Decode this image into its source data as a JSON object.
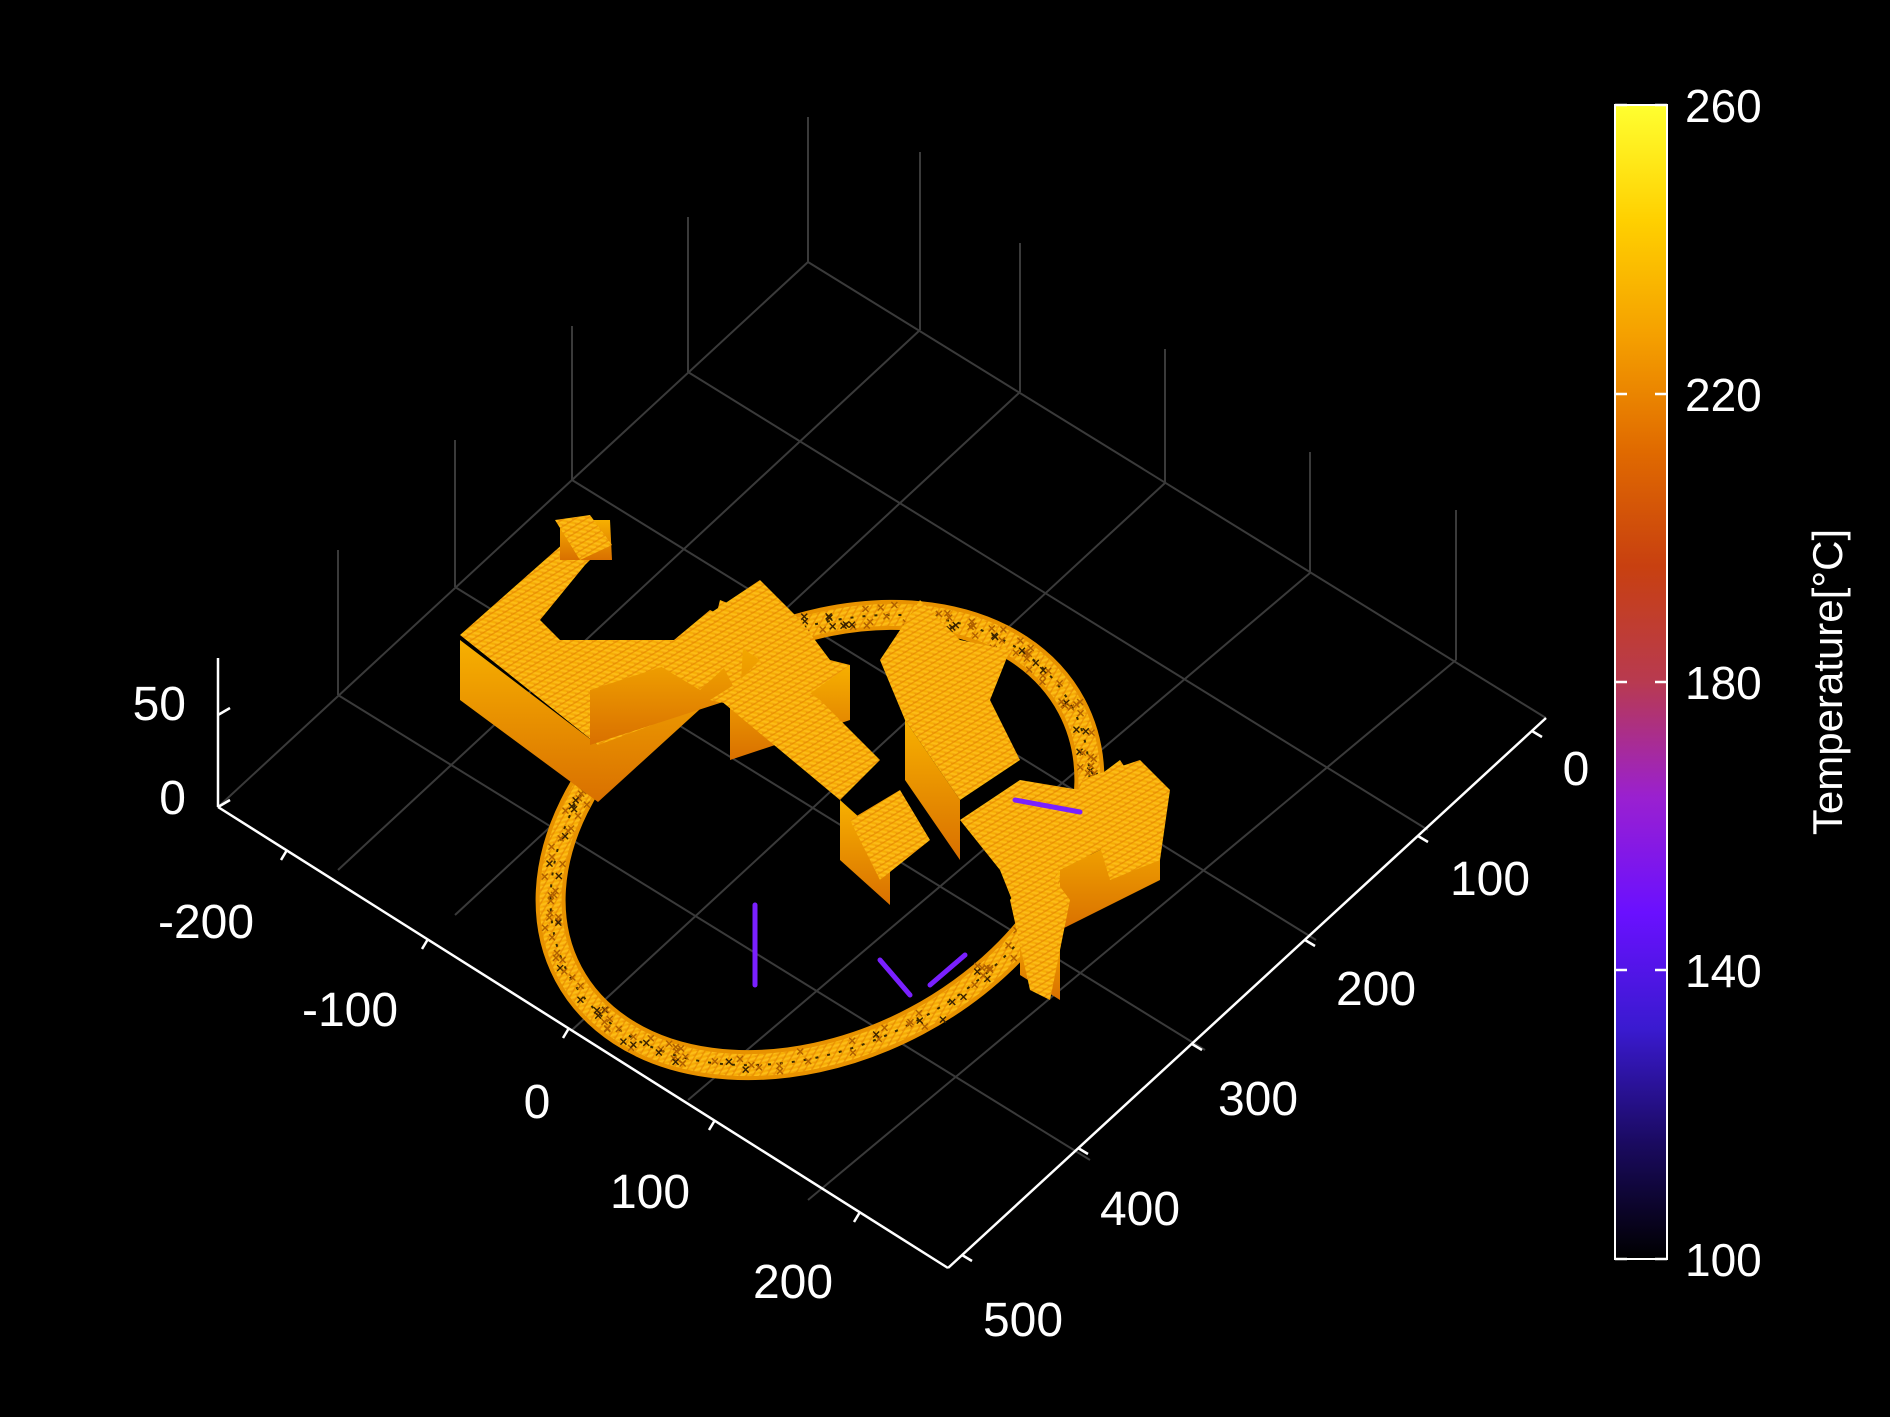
{
  "chart_data": {
    "type": "scatter3d",
    "title": "",
    "xlabel": "",
    "ylabel": "",
    "zlabel": "",
    "background": "#000000",
    "grid": true,
    "view": "isometric",
    "axes": {
      "x": {
        "ticks": [
          "-200",
          "-100",
          "0",
          "100",
          "200"
        ],
        "range": [
          -250,
          250
        ]
      },
      "y": {
        "ticks": [
          "0",
          "100",
          "200",
          "300",
          "400",
          "500"
        ],
        "range": [
          -20,
          500
        ]
      },
      "z": {
        "ticks": [
          "0",
          "50"
        ],
        "range": [
          0,
          80
        ]
      }
    },
    "colorbar": {
      "label": "Temperature[°C]",
      "ticks": [
        "100",
        "140",
        "180",
        "220",
        "260"
      ],
      "range": [
        100,
        260
      ],
      "colormap": [
        "#000000",
        "#1a0a60",
        "#3a1ad0",
        "#6a10ff",
        "#9a20d0",
        "#b83a50",
        "#c84010",
        "#e06a00",
        "#f5a000",
        "#ffd000",
        "#ffff30"
      ],
      "placement": "right"
    },
    "shapes": [
      {
        "name": "ring",
        "center": [
          -60,
          200
        ],
        "radius": 170,
        "height": 12,
        "temperature": 245
      },
      {
        "name": "C-shape",
        "height": 70,
        "temperature": 248
      },
      {
        "name": "U-shape",
        "height": 60,
        "temperature": 245
      },
      {
        "name": "Z-shape",
        "height": 70,
        "temperature": 242
      },
      {
        "name": "lightning-bolt",
        "height": 60,
        "temperature": 240
      }
    ]
  }
}
